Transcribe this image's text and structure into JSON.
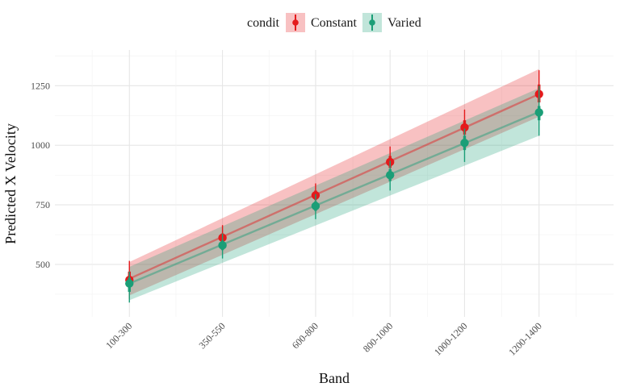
{
  "chart_data": {
    "type": "line",
    "title": "",
    "xlabel": "Band",
    "ylabel": "Predicted X Velocity",
    "categories": [
      "100-300",
      "350-550",
      "600-800",
      "800-1000",
      "1000-1200",
      "1200-1400"
    ],
    "x_positions": [
      200,
      450,
      700,
      900,
      1100,
      1300
    ],
    "xlim": [
      0,
      1500
    ],
    "ylim": [
      280,
      1400
    ],
    "y_ticks": [
      500,
      750,
      1000,
      1250
    ],
    "grid": true,
    "legend": {
      "title": "condit",
      "placement": "top"
    },
    "series": [
      {
        "name": "Constant",
        "color": "#E41A1C",
        "values": [
          435,
          612,
          790,
          930,
          1075,
          1215
        ],
        "point_interval_inner": [
          [
            405,
            470
          ],
          [
            595,
            630
          ],
          [
            770,
            810
          ],
          [
            905,
            955
          ],
          [
            1045,
            1105
          ],
          [
            1180,
            1255
          ]
        ],
        "point_interval_outer": [
          [
            355,
            515
          ],
          [
            570,
            665
          ],
          [
            745,
            840
          ],
          [
            875,
            995
          ],
          [
            1010,
            1150
          ],
          [
            1135,
            1315
          ]
        ],
        "fit_line": [
          [
            200,
            440
          ],
          [
            1300,
            1215
          ]
        ],
        "ribbon": [
          [
            200,
            370,
            510
          ],
          [
            1300,
            1120,
            1320
          ]
        ]
      },
      {
        "name": "Varied",
        "color": "#1B9E77",
        "values": [
          420,
          580,
          745,
          875,
          1010,
          1138
        ],
        "point_interval_inner": [
          [
            385,
            445
          ],
          [
            560,
            600
          ],
          [
            725,
            765
          ],
          [
            850,
            900
          ],
          [
            980,
            1040
          ],
          [
            1105,
            1165
          ]
        ],
        "point_interval_outer": [
          [
            340,
            470
          ],
          [
            525,
            630
          ],
          [
            690,
            795
          ],
          [
            810,
            935
          ],
          [
            930,
            1070
          ],
          [
            1040,
            1250
          ]
        ],
        "fit_line": [
          [
            200,
            420
          ],
          [
            1300,
            1140
          ]
        ],
        "ribbon": [
          [
            200,
            350,
            490
          ],
          [
            1300,
            1040,
            1240
          ]
        ]
      }
    ]
  }
}
